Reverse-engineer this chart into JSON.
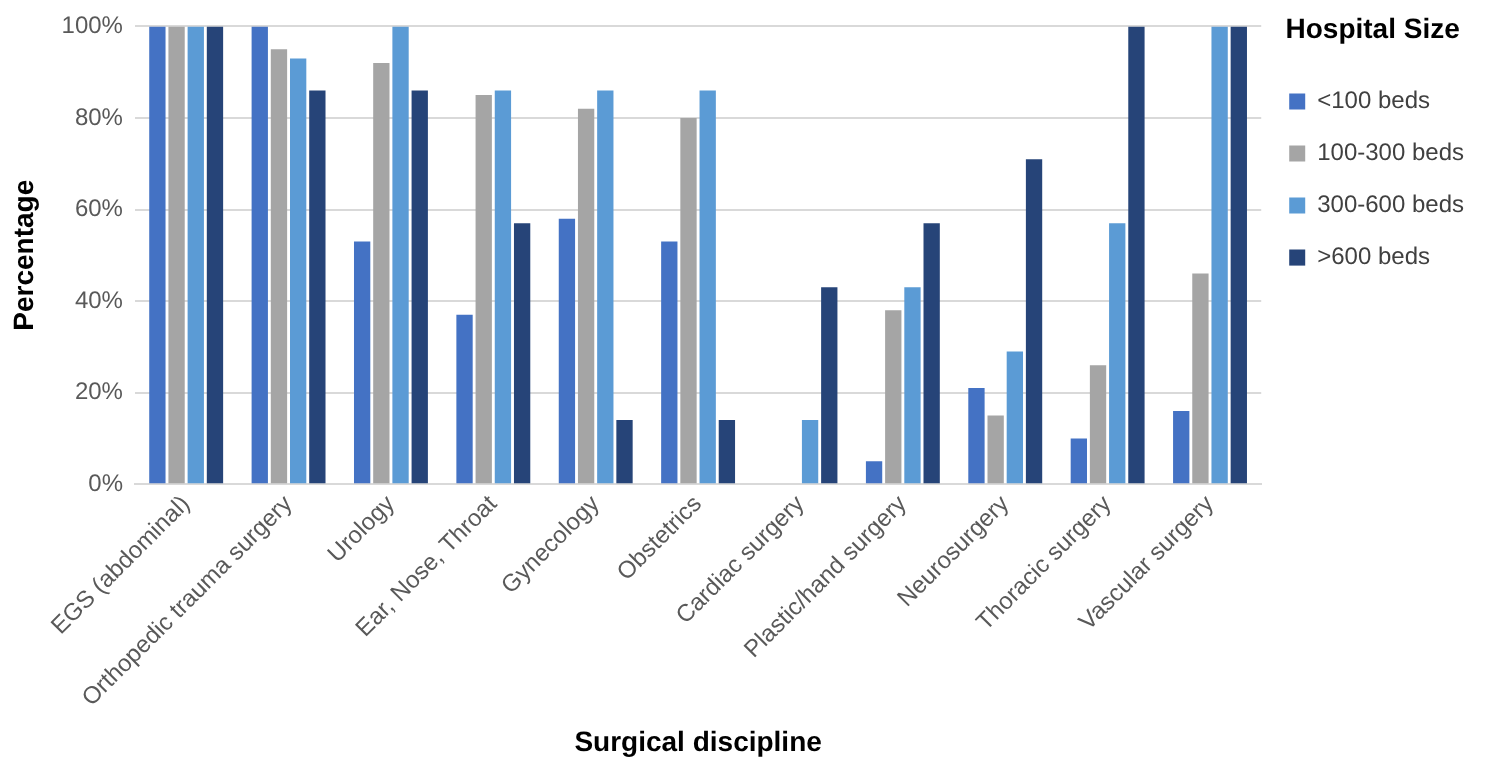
{
  "chart_data": {
    "type": "bar",
    "xlabel": "Surgical discipline",
    "ylabel": "Percentage",
    "legend_title": "Hospital Size",
    "categories": [
      "EGS (abdominal)",
      "Orthopedic trauma surgery",
      "Urology",
      "Ear, Nose, Throat",
      "Gynecology",
      "Obstetrics",
      "Cardiac surgery",
      "Plastic/hand surgery",
      "Neurosurgery",
      "Thoracic surgery",
      "Vascular surgery"
    ],
    "series": [
      {
        "name": "<100 beds",
        "color": "#4472c4",
        "values": [
          100,
          100,
          53,
          37,
          58,
          53,
          0,
          5,
          21,
          10,
          16
        ]
      },
      {
        "name": "100-300 beds",
        "color": "#a5a5a5",
        "values": [
          100,
          95,
          92,
          85,
          82,
          80,
          0,
          38,
          15,
          26,
          46
        ]
      },
      {
        "name": "300-600 beds",
        "color": "#5b9bd5",
        "values": [
          100,
          93,
          100,
          86,
          86,
          86,
          14,
          43,
          29,
          57,
          100
        ]
      },
      {
        "name": ">600 beds",
        "color": "#264478",
        "values": [
          100,
          86,
          86,
          57,
          14,
          14,
          43,
          57,
          71,
          100,
          100
        ]
      }
    ],
    "ylim": [
      0,
      100
    ],
    "yticks": [
      {
        "value": 0,
        "label": "0%"
      },
      {
        "value": 20,
        "label": "20%"
      },
      {
        "value": 40,
        "label": "40%"
      },
      {
        "value": 60,
        "label": "60%"
      },
      {
        "value": 80,
        "label": "80%"
      },
      {
        "value": 100,
        "label": "100%"
      }
    ],
    "grid": "y",
    "legend": "right"
  }
}
